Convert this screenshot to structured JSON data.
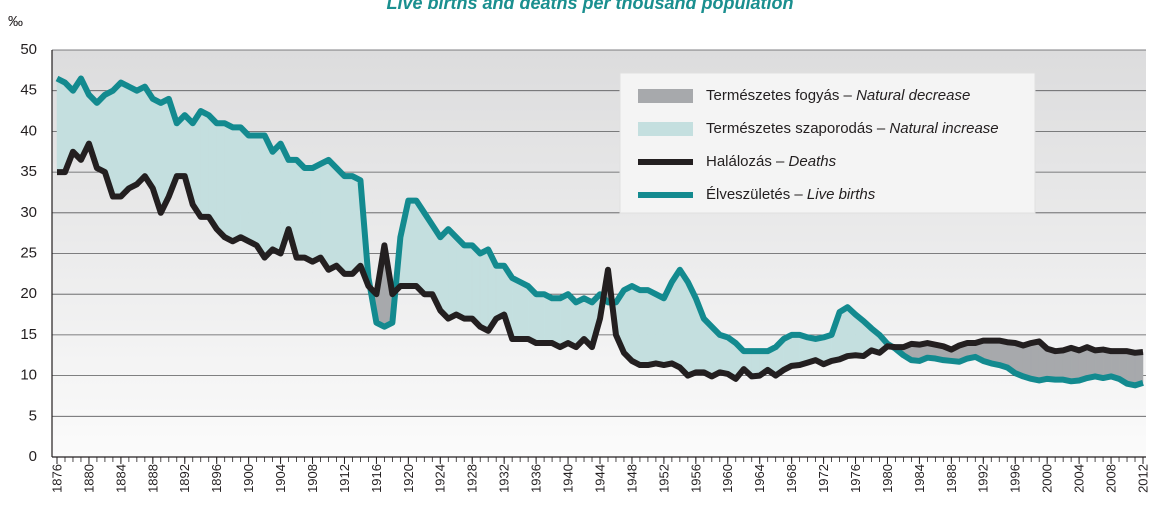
{
  "chart_data": {
    "type": "line",
    "title": "Live births and deaths per thousand population",
    "y_label": "‰",
    "x": [
      1876,
      1877,
      1878,
      1879,
      1880,
      1881,
      1882,
      1883,
      1884,
      1885,
      1886,
      1887,
      1888,
      1889,
      1890,
      1891,
      1892,
      1893,
      1894,
      1895,
      1896,
      1897,
      1898,
      1899,
      1900,
      1901,
      1902,
      1903,
      1904,
      1905,
      1906,
      1907,
      1908,
      1909,
      1910,
      1911,
      1912,
      1913,
      1914,
      1915,
      1916,
      1917,
      1918,
      1919,
      1920,
      1921,
      1922,
      1923,
      1924,
      1925,
      1926,
      1927,
      1928,
      1929,
      1930,
      1931,
      1932,
      1933,
      1934,
      1935,
      1936,
      1937,
      1938,
      1939,
      1940,
      1941,
      1942,
      1943,
      1944,
      1945,
      1946,
      1947,
      1948,
      1949,
      1950,
      1951,
      1952,
      1953,
      1954,
      1955,
      1956,
      1957,
      1958,
      1959,
      1960,
      1961,
      1962,
      1963,
      1964,
      1965,
      1966,
      1967,
      1968,
      1969,
      1970,
      1971,
      1972,
      1973,
      1974,
      1975,
      1976,
      1977,
      1978,
      1979,
      1980,
      1981,
      1982,
      1983,
      1984,
      1985,
      1986,
      1987,
      1988,
      1989,
      1990,
      1991,
      1992,
      1993,
      1994,
      1995,
      1996,
      1997,
      1998,
      1999,
      2000,
      2001,
      2002,
      2003,
      2004,
      2005,
      2006,
      2007,
      2008,
      2009,
      2010,
      2011,
      2012
    ],
    "series": [
      {
        "name": "Halálozás – Deaths",
        "color": "#231f20",
        "values": [
          35,
          35,
          37.5,
          36.5,
          38.5,
          35.5,
          35,
          32,
          32,
          33,
          33.5,
          34.5,
          33,
          30,
          32,
          34.5,
          34.5,
          31,
          29.5,
          29.5,
          28,
          27,
          26.5,
          27,
          26.5,
          26,
          24.5,
          25.5,
          25,
          28,
          24.5,
          24.5,
          24,
          24.5,
          23,
          23.5,
          22.5,
          22.5,
          23.5,
          21,
          20,
          26,
          20,
          21,
          21,
          21,
          20,
          20,
          18,
          17,
          17.5,
          17,
          17,
          16,
          15.5,
          17,
          17.5,
          14.5,
          14.5,
          14.5,
          14,
          14,
          14,
          13.5,
          14,
          13.5,
          14.5,
          13.5,
          17,
          23,
          15,
          12.8,
          11.8,
          11.3,
          11.3,
          11.5,
          11.3,
          11.5,
          11,
          10,
          10.4,
          10.4,
          9.9,
          10.4,
          10.2,
          9.6,
          10.8,
          9.9,
          10,
          10.7,
          10,
          10.7,
          11.2,
          11.3,
          11.6,
          11.9,
          11.4,
          11.8,
          12,
          12.4,
          12.5,
          12.4,
          13.1,
          12.8,
          13.6,
          13.5,
          13.5,
          13.9,
          13.8,
          14,
          13.8,
          13.6,
          13.2,
          13.7,
          14,
          14,
          14.3,
          14.3,
          14.3,
          14.1,
          14,
          13.7,
          14,
          14.2,
          13.3,
          13,
          13.1,
          13.4,
          13.1,
          13.5,
          13.1,
          13.2,
          13,
          13,
          13,
          12.8,
          12.9
        ]
      },
      {
        "name": "Élveszületés – Live births",
        "color": "#138a8f",
        "values": [
          46.5,
          46,
          45,
          46.5,
          44.5,
          43.5,
          44.5,
          45,
          46,
          45.5,
          45,
          45.5,
          44,
          43.5,
          44,
          41,
          42,
          41,
          42.5,
          42,
          41,
          41,
          40.5,
          40.5,
          39.5,
          39.5,
          39.5,
          37.5,
          38.5,
          36.5,
          36.5,
          35.5,
          35.5,
          36,
          36.5,
          35.5,
          34.5,
          34.5,
          34,
          22,
          16.5,
          16,
          16.5,
          27,
          31.5,
          31.5,
          30,
          28.5,
          27,
          28,
          27,
          26,
          26,
          25,
          25.5,
          23.5,
          23.5,
          22,
          21.5,
          21,
          20,
          20,
          19.5,
          19.5,
          20,
          19,
          19.5,
          19,
          20,
          19,
          19,
          20.5,
          21,
          20.5,
          20.5,
          20,
          19.5,
          21.5,
          23,
          21.5,
          19.5,
          17,
          16,
          15,
          14.7,
          14,
          13,
          13,
          13,
          13,
          13.5,
          14.5,
          15,
          15,
          14.7,
          14.5,
          14.7,
          15,
          17.8,
          18.4,
          17.5,
          16.7,
          15.8,
          15,
          13.9,
          13.3,
          12.5,
          11.9,
          11.8,
          12.2,
          12.1,
          11.9,
          11.8,
          11.7,
          12.1,
          12.3,
          11.8,
          11.5,
          11.3,
          11,
          10.3,
          9.9,
          9.6,
          9.4,
          9.6,
          9.5,
          9.5,
          9.3,
          9.4,
          9.7,
          9.9,
          9.7,
          9.9,
          9.6,
          9,
          8.8,
          9.1
        ]
      }
    ],
    "fills": [
      {
        "name": "Természetes fogyás – Natural decrease",
        "color": "#a7a9ac"
      },
      {
        "name": "Természetes szaporodás – Natural increase",
        "color": "#c4dfdf"
      }
    ],
    "xlim": [
      1876,
      2012
    ],
    "xticks": [
      1876,
      1880,
      1884,
      1888,
      1892,
      1896,
      1900,
      1904,
      1908,
      1912,
      1916,
      1920,
      1924,
      1928,
      1932,
      1936,
      1940,
      1944,
      1948,
      1952,
      1956,
      1960,
      1964,
      1968,
      1972,
      1976,
      1980,
      1984,
      1988,
      1992,
      1996,
      2000,
      2004,
      2008,
      2012
    ],
    "ylim": [
      0,
      50
    ],
    "yticks": [
      0,
      5,
      10,
      15,
      20,
      25,
      30,
      35,
      40,
      45,
      50
    ],
    "grid": true
  }
}
